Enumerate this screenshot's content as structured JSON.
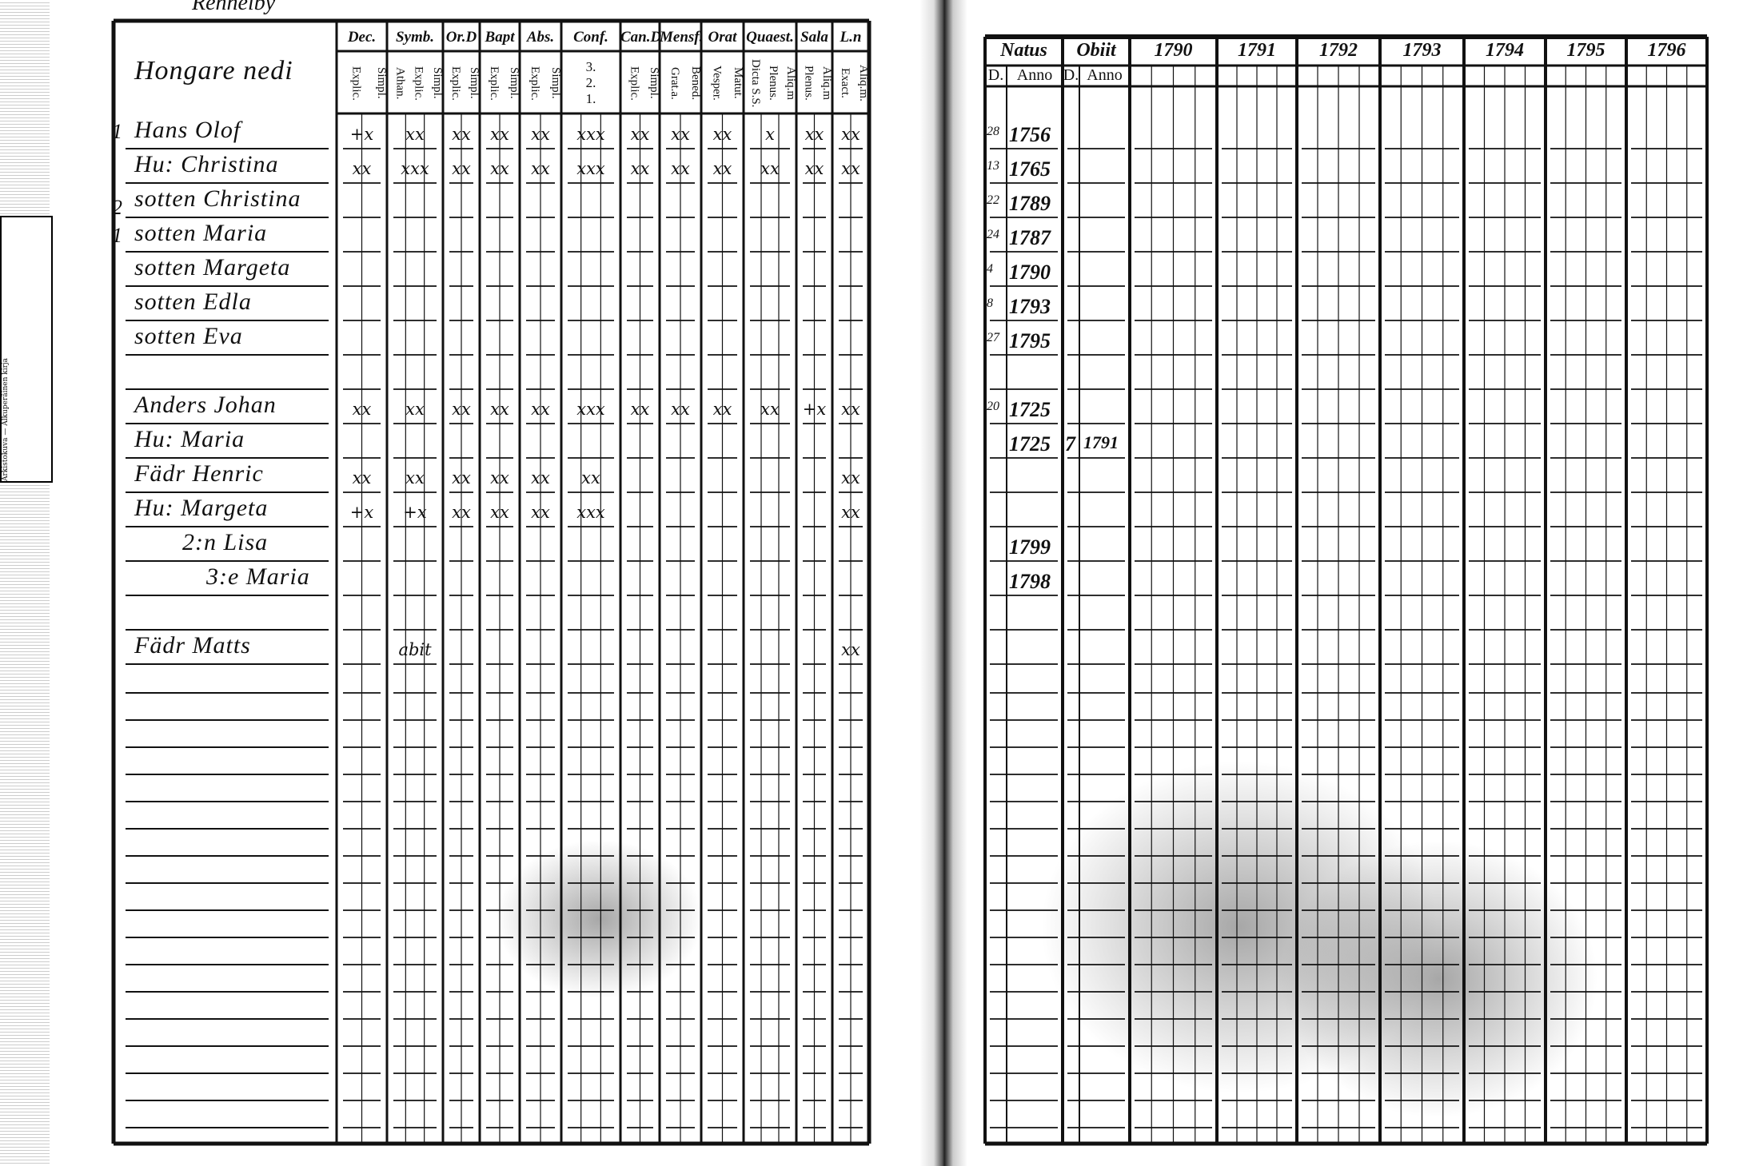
{
  "left_page": {
    "top_scribble": "Rennelby",
    "name_header": "Hongare nedi",
    "side_numbers": [
      "1",
      "2",
      "1"
    ],
    "columns": [
      {
        "head": "Dec.",
        "subs": [
          "Explic.",
          "Simpl."
        ]
      },
      {
        "head": "Symb.",
        "subs": [
          "Athan.",
          "Explic.",
          "Simpl."
        ]
      },
      {
        "head": "Or.D",
        "subs": [
          "Explic.",
          "Simpl."
        ]
      },
      {
        "head": "Bapt",
        "subs": [
          "Explic.",
          "Simpl."
        ]
      },
      {
        "head": "Abs.",
        "subs": [
          "Explic.",
          "Simpl."
        ]
      },
      {
        "head": "Conf.",
        "subs": [
          "3.",
          "2.",
          "1."
        ]
      },
      {
        "head": "Can.D",
        "subs": [
          "Explic.",
          "Simpl."
        ]
      },
      {
        "head": "Mensf.",
        "subs": [
          "Grat.a.",
          "Bened."
        ]
      },
      {
        "head": "Orat",
        "subs": [
          "Vesper.",
          "Matut."
        ]
      },
      {
        "head": "Quaest.",
        "subs": [
          "Dicta S.S.",
          "Plenus.",
          "Aliq.m"
        ]
      },
      {
        "head": "Sala",
        "subs": [
          "Plenus.",
          "Aliq.m"
        ]
      },
      {
        "head": "L.n",
        "subs": [
          "Exact.",
          "Aliq.m."
        ]
      }
    ],
    "rows": [
      {
        "name": "Hans Olof",
        "marks": [
          "+x",
          "xx",
          "xx",
          "xx",
          "xx",
          "xxx",
          "xx",
          "xx",
          "xx",
          "x",
          "xx",
          "xx"
        ]
      },
      {
        "name": "Hu: Christina",
        "marks": [
          "xx",
          "xxx",
          "xx",
          "xx",
          "xx",
          "xxx",
          "xx",
          "xx",
          "xx",
          "xx",
          "xx",
          "xx"
        ]
      },
      {
        "name": "sotten Christina",
        "marks": [
          "",
          "",
          "",
          "",
          "",
          "",
          "",
          "",
          "",
          "",
          "",
          ""
        ]
      },
      {
        "name": "sotten Maria",
        "marks": [
          "",
          "",
          "",
          "",
          "",
          "",
          "",
          "",
          "",
          "",
          "",
          ""
        ]
      },
      {
        "name": "sotten Margeta",
        "marks": [
          "",
          "",
          "",
          "",
          "",
          "",
          "",
          "",
          "",
          "",
          "",
          ""
        ]
      },
      {
        "name": "sotten Edla",
        "marks": [
          "",
          "",
          "",
          "",
          "",
          "",
          "",
          "",
          "",
          "",
          "",
          ""
        ]
      },
      {
        "name": "sotten Eva",
        "marks": [
          "",
          "",
          "",
          "",
          "",
          "",
          "",
          "",
          "",
          "",
          "",
          ""
        ]
      },
      {
        "name": "",
        "marks": [
          "",
          "",
          "",
          "",
          "",
          "",
          "",
          "",
          "",
          "",
          "",
          ""
        ]
      },
      {
        "name": "Anders Johan",
        "marks": [
          "xx",
          "xx",
          "xx",
          "xx",
          "xx",
          "xxx",
          "xx",
          "xx",
          "xx",
          "xx",
          "+x",
          "xx"
        ]
      },
      {
        "name": "Hu: Maria",
        "marks": [
          "",
          "",
          "",
          "",
          "",
          "",
          "",
          "",
          "",
          "",
          "",
          ""
        ]
      },
      {
        "name": "Fädr Henric",
        "marks": [
          "xx",
          "xx",
          "xx",
          "xx",
          "xx",
          "xx",
          "",
          "",
          "",
          "",
          "",
          "xx"
        ]
      },
      {
        "name": "Hu: Margeta",
        "marks": [
          "+x",
          "+x",
          "xx",
          "xx",
          "xx",
          "xxx",
          "",
          "",
          "",
          "",
          "",
          "xx"
        ]
      },
      {
        "name": "2:n Lisa",
        "marks": [
          "",
          "",
          "",
          "",
          "",
          "",
          "",
          "",
          "",
          "",
          "",
          ""
        ]
      },
      {
        "name": "3:e Maria",
        "marks": [
          "",
          "",
          "",
          "",
          "",
          "",
          "",
          "",
          "",
          "",
          "",
          ""
        ]
      },
      {
        "name": "",
        "marks": [
          "",
          "",
          "",
          "",
          "",
          "",
          "",
          "",
          "",
          "",
          "",
          ""
        ]
      },
      {
        "name": "Fädr Matts",
        "marks": [
          "",
          "abit",
          "",
          "",
          "",
          "",
          "",
          "",
          "",
          "",
          "",
          "xx"
        ]
      }
    ]
  },
  "right_page": {
    "headers": [
      "Natus",
      "Obiit",
      "1790",
      "1791",
      "1792",
      "1793",
      "1794",
      "1795",
      "1796"
    ],
    "subheaders": [
      "D.",
      "Anno",
      "D.",
      "Anno"
    ],
    "rows": [
      {
        "natus_d": "28",
        "natus_anno": "1756",
        "obiit_d": "",
        "obiit_anno": ""
      },
      {
        "natus_d": "13",
        "natus_anno": "1765",
        "obiit_d": "",
        "obiit_anno": ""
      },
      {
        "natus_d": "22",
        "natus_anno": "1789",
        "obiit_d": "",
        "obiit_anno": ""
      },
      {
        "natus_d": "24",
        "natus_anno": "1787",
        "obiit_d": "",
        "obiit_anno": ""
      },
      {
        "natus_d": "4",
        "natus_anno": "1790",
        "obiit_d": "",
        "obiit_anno": ""
      },
      {
        "natus_d": "8",
        "natus_anno": "1793",
        "obiit_d": "",
        "obiit_anno": ""
      },
      {
        "natus_d": "27",
        "natus_anno": "1795",
        "obiit_d": "",
        "obiit_anno": ""
      },
      {
        "natus_d": "",
        "natus_anno": "",
        "obiit_d": "",
        "obiit_anno": ""
      },
      {
        "natus_d": "20",
        "natus_anno": "1725",
        "obiit_d": "",
        "obiit_anno": ""
      },
      {
        "natus_d": "",
        "natus_anno": "1725",
        "obiit_d": "7",
        "obiit_anno": "1791"
      },
      {
        "natus_d": "",
        "natus_anno": "",
        "obiit_d": "",
        "obiit_anno": ""
      },
      {
        "natus_d": "",
        "natus_anno": "",
        "obiit_d": "",
        "obiit_anno": ""
      },
      {
        "natus_d": "",
        "natus_anno": "1799",
        "obiit_d": "",
        "obiit_anno": ""
      },
      {
        "natus_d": "",
        "natus_anno": "1798",
        "obiit_d": "",
        "obiit_anno": ""
      }
    ]
  },
  "margin_label": "Arkistokuva — Alkuperäinen kirja"
}
